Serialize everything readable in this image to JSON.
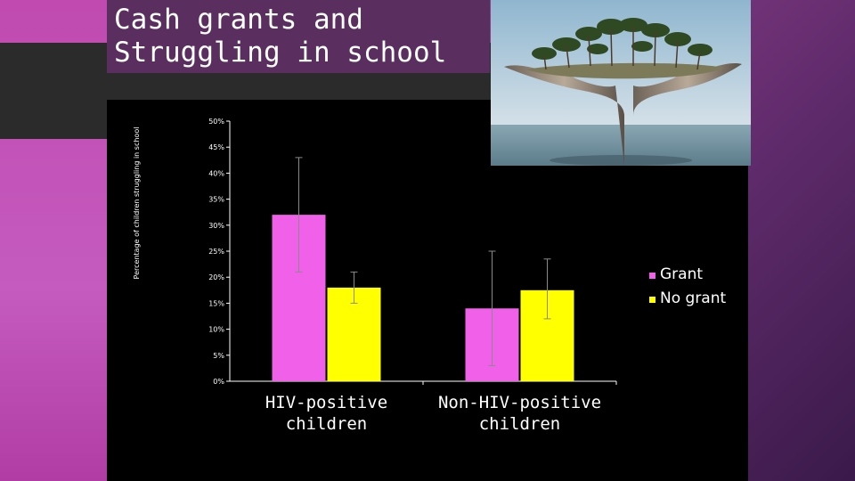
{
  "slide": {
    "title_line1": "Cash grants and",
    "title_line2": "Struggling in school"
  },
  "chart_data": {
    "type": "bar",
    "ylabel": "Percentage of children struggling in school",
    "ylim": [
      0,
      50
    ],
    "yticks": [
      "0%",
      "5%",
      "10%",
      "15%",
      "20%",
      "25%",
      "30%",
      "35%",
      "40%",
      "45%",
      "50%"
    ],
    "categories": [
      "HIV-positive children",
      "Non-HIV-positive children"
    ],
    "category_lines": [
      [
        "HIV-positive",
        "children"
      ],
      [
        "Non-HIV-positive",
        "children"
      ]
    ],
    "series": [
      {
        "name": "Grant",
        "color": "#f060e8",
        "values": [
          32,
          14
        ],
        "err_low": [
          21,
          3
        ],
        "err_high": [
          43,
          25
        ]
      },
      {
        "name": "No grant",
        "color": "#ffff00",
        "values": [
          18,
          17.5
        ],
        "err_low": [
          15,
          12
        ],
        "err_high": [
          21,
          23.5
        ]
      }
    ],
    "legend_position": "right",
    "grid": false
  }
}
